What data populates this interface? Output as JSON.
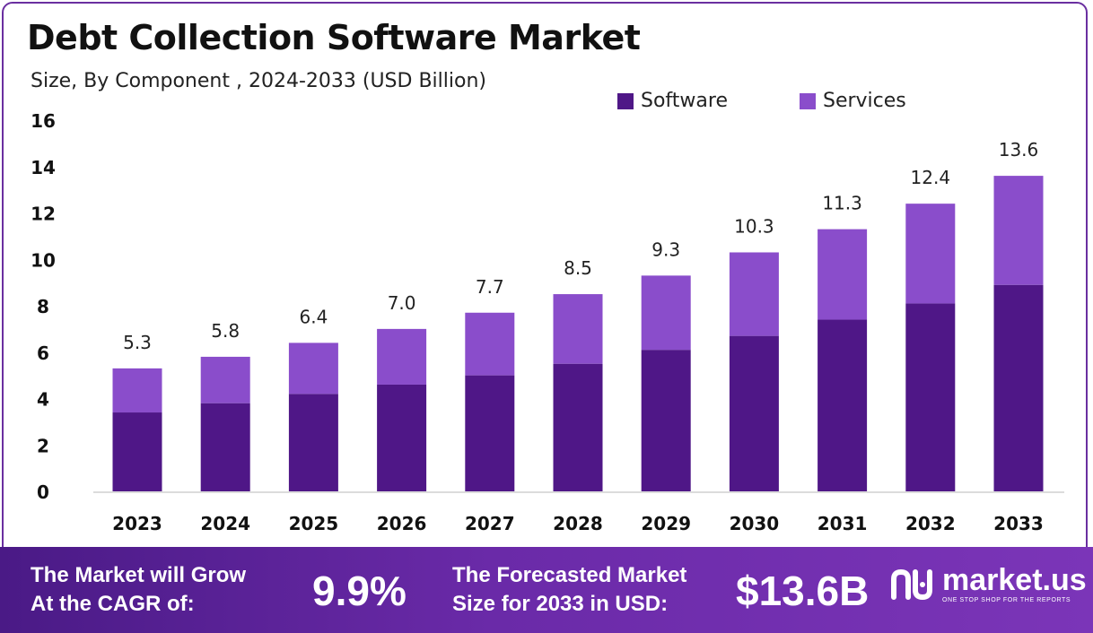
{
  "header": {
    "title": "Debt Collection Software Market",
    "subtitle": "Size, By Component , 2024-2033 (USD Billion)"
  },
  "legend": [
    {
      "label": "Software",
      "color": "#4f1787"
    },
    {
      "label": "Services",
      "color": "#8a4dcb"
    }
  ],
  "chart_data": {
    "type": "bar",
    "stacked": true,
    "categories": [
      "2023",
      "2024",
      "2025",
      "2026",
      "2027",
      "2028",
      "2029",
      "2030",
      "2031",
      "2032",
      "2033"
    ],
    "series": [
      {
        "name": "Software",
        "color": "#4f1787",
        "values": [
          3.4,
          3.8,
          4.2,
          4.6,
          5.0,
          5.5,
          6.1,
          6.7,
          7.4,
          8.1,
          8.9
        ]
      },
      {
        "name": "Services",
        "color": "#8a4dcb",
        "values": [
          1.9,
          2.0,
          2.2,
          2.4,
          2.7,
          3.0,
          3.2,
          3.6,
          3.9,
          4.3,
          4.7
        ]
      }
    ],
    "totals": [
      "5.3",
      "5.8",
      "6.4",
      "7.0",
      "7.7",
      "8.5",
      "9.3",
      "10.3",
      "11.3",
      "12.4",
      "13.6"
    ],
    "ylim": [
      0,
      16
    ],
    "yticks": [
      0,
      2,
      4,
      6,
      8,
      10,
      12,
      14,
      16
    ],
    "grid": false,
    "legend_position": "top-right"
  },
  "footer": {
    "cagr_label_line1": "The Market will Grow",
    "cagr_label_line2": "At the CAGR of:",
    "cagr_value": "9.9%",
    "forecast_label_line1": "The Forecasted Market",
    "forecast_label_line2": "Size for 2033 in USD:",
    "forecast_value": "$13.6B",
    "logo_text": "market.us",
    "logo_tagline": "ONE STOP SHOP FOR THE REPORTS"
  }
}
